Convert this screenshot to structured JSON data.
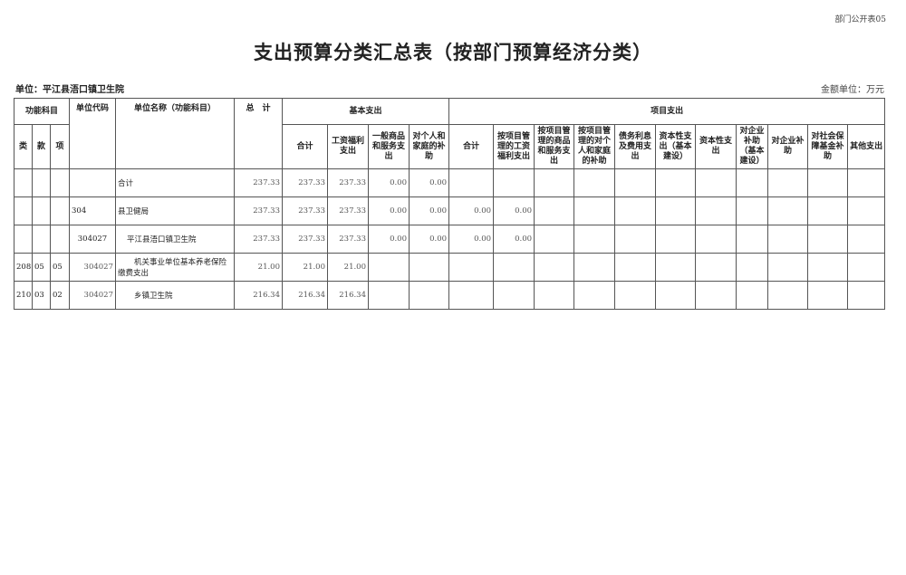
{
  "form_no": "部门公开表05",
  "title": "支出预算分类汇总表（按部门预算经济分类）",
  "unit_label": "单位：平江县浯口镇卫生院",
  "money_unit": "金额单位：万元",
  "headers": {
    "func_subject": "功能科目",
    "lei": "类",
    "kuan": "款",
    "xiang": "项",
    "unit_code": "单位代码",
    "unit_name": "单位名称（功能科目）",
    "total": "总　计",
    "basic": "基本支出",
    "project": "项目支出",
    "basic_cols": [
      "合计",
      "工资福利支出",
      "一般商品和服务支出",
      "对个人和家庭的补助"
    ],
    "project_cols": [
      "合计",
      "按项目管理的工资福利支出",
      "按项目管理的商品和服务支出",
      "按项目管理的对个人和家庭的补助",
      "债务利息及费用支出",
      "资本性支出（基本建设）",
      "资本性支出",
      "对企业补助（基本建设）",
      "对企业补助",
      "对社会保障基金补助",
      "其他支出"
    ]
  },
  "rows": [
    {
      "lei": "",
      "kuan": "",
      "xiang": "",
      "code": "",
      "name": "合计",
      "total": "237.33",
      "basic": [
        "237.33",
        "237.33",
        "0.00",
        "0.00"
      ],
      "project": [
        "",
        "",
        "",
        "",
        "",
        "",
        "",
        "",
        "",
        "",
        ""
      ]
    },
    {
      "lei": "",
      "kuan": "",
      "xiang": "",
      "code": "304",
      "name": "县卫健局",
      "total": "237.33",
      "basic": [
        "237.33",
        "237.33",
        "0.00",
        "0.00"
      ],
      "project": [
        "0.00",
        "0.00",
        "",
        "",
        "",
        "",
        "",
        "",
        "",
        "",
        ""
      ]
    },
    {
      "lei": "",
      "kuan": "",
      "xiang": "",
      "code": "304027",
      "name": "平江县浯口镇卫生院",
      "total": "237.33",
      "basic": [
        "237.33",
        "237.33",
        "0.00",
        "0.00"
      ],
      "project": [
        "0.00",
        "0.00",
        "",
        "",
        "",
        "",
        "",
        "",
        "",
        "",
        ""
      ]
    },
    {
      "lei": "208",
      "kuan": "05",
      "xiang": "05",
      "code": "304027",
      "name": "机关事业单位基本养老保险缴费支出",
      "total": "21.00",
      "basic": [
        "21.00",
        "21.00",
        "",
        ""
      ],
      "project": [
        "",
        "",
        "",
        "",
        "",
        "",
        "",
        "",
        "",
        "",
        ""
      ]
    },
    {
      "lei": "210",
      "kuan": "03",
      "xiang": "02",
      "code": "304027",
      "name": "乡镇卫生院",
      "total": "216.34",
      "basic": [
        "216.34",
        "216.34",
        "",
        ""
      ],
      "project": [
        "",
        "",
        "",
        "",
        "",
        "",
        "",
        "",
        "",
        "",
        ""
      ]
    }
  ]
}
